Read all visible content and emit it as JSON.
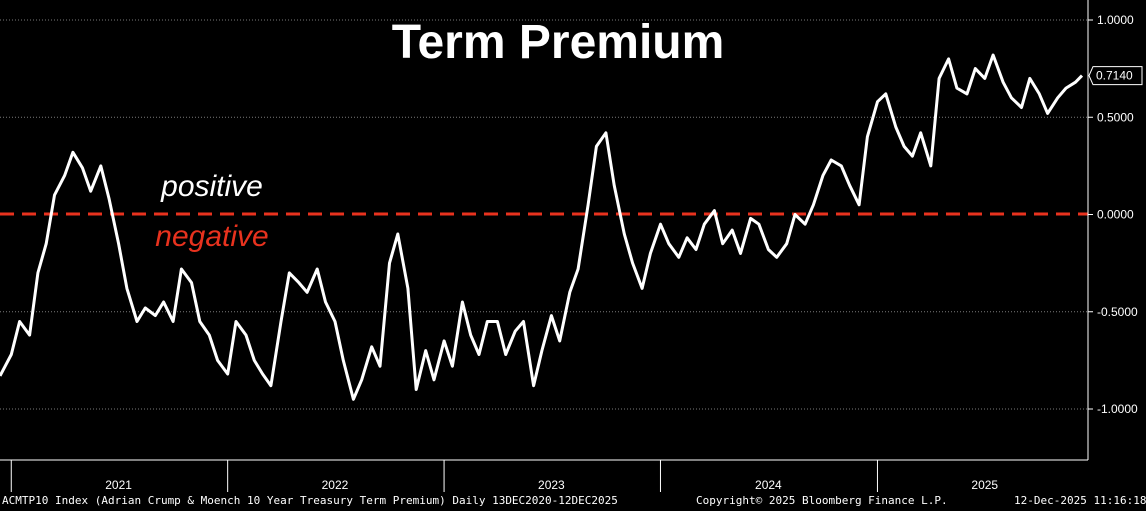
{
  "chart_data": {
    "type": "line",
    "title": "Term Premium",
    "ylim": [
      -1.15,
      1.05
    ],
    "yticks": [
      -1.0,
      -0.5,
      0.0,
      0.5,
      1.0
    ],
    "ytick_labels": [
      "-1.0000",
      "-0.5000",
      "0.0000",
      "0.5000",
      "1.0000"
    ],
    "x_range": [
      "2020-12-13",
      "2025-12-12"
    ],
    "year_labels": [
      {
        "label": "2021",
        "date": "2021-07-01"
      },
      {
        "label": "2022",
        "date": "2022-07-01"
      },
      {
        "label": "2023",
        "date": "2023-07-01"
      },
      {
        "label": "2024",
        "date": "2024-07-01"
      },
      {
        "label": "2025",
        "date": "2025-07-01"
      }
    ],
    "year_boundaries": [
      "2021-01-01",
      "2022-01-01",
      "2023-01-01",
      "2024-01-01",
      "2025-01-01"
    ],
    "grid": true,
    "reference_line": {
      "y": 0.0,
      "color": "#e8321e"
    },
    "annotations": [
      {
        "text": "positive",
        "color": "#ffffff"
      },
      {
        "text": "negative",
        "color": "#e8321e"
      }
    ],
    "last_value_label": "0.7140",
    "line_color": "#ffffff",
    "series": [
      {
        "x": [
          "2020-12-13",
          "2021-01-01",
          "2021-01-15",
          "2021-02-01",
          "2021-02-15",
          "2021-03-01",
          "2021-03-15",
          "2021-04-01",
          "2021-04-15",
          "2021-05-01",
          "2021-05-15",
          "2021-06-01",
          "2021-06-15",
          "2021-07-01",
          "2021-07-15",
          "2021-08-01",
          "2021-08-15",
          "2021-09-01",
          "2021-09-15",
          "2021-10-01",
          "2021-10-15",
          "2021-11-01",
          "2021-11-15",
          "2021-12-01",
          "2021-12-15",
          "2022-01-01",
          "2022-01-15",
          "2022-02-01",
          "2022-02-15",
          "2022-03-01",
          "2022-03-15",
          "2022-04-01",
          "2022-04-15",
          "2022-05-01",
          "2022-05-15",
          "2022-06-01",
          "2022-06-15",
          "2022-07-01",
          "2022-07-15",
          "2022-08-01",
          "2022-08-15",
          "2022-09-01",
          "2022-09-15",
          "2022-10-01",
          "2022-10-15",
          "2022-11-01",
          "2022-11-15",
          "2022-12-01",
          "2022-12-15",
          "2023-01-01",
          "2023-01-15",
          "2023-02-01",
          "2023-02-15",
          "2023-03-01",
          "2023-03-15",
          "2023-04-01",
          "2023-04-15",
          "2023-05-01",
          "2023-05-15",
          "2023-06-01",
          "2023-06-15",
          "2023-07-01",
          "2023-07-15",
          "2023-08-01",
          "2023-08-15",
          "2023-09-01",
          "2023-09-15",
          "2023-10-01",
          "2023-10-15",
          "2023-11-01",
          "2023-11-15",
          "2023-12-01",
          "2023-12-15",
          "2024-01-01",
          "2024-01-15",
          "2024-02-01",
          "2024-02-15",
          "2024-03-01",
          "2024-03-15",
          "2024-04-01",
          "2024-04-15",
          "2024-05-01",
          "2024-05-15",
          "2024-06-01",
          "2024-06-15",
          "2024-07-01",
          "2024-07-15",
          "2024-08-01",
          "2024-08-15",
          "2024-09-01",
          "2024-09-15",
          "2024-10-01",
          "2024-10-15",
          "2024-11-01",
          "2024-11-15",
          "2024-12-01",
          "2024-12-15",
          "2025-01-01",
          "2025-01-15",
          "2025-02-01",
          "2025-02-15",
          "2025-03-01",
          "2025-03-15",
          "2025-04-01",
          "2025-04-15",
          "2025-05-01",
          "2025-05-15",
          "2025-06-01",
          "2025-06-15",
          "2025-07-01",
          "2025-07-15",
          "2025-08-01",
          "2025-08-15",
          "2025-09-01",
          "2025-09-15",
          "2025-10-01",
          "2025-10-15",
          "2025-11-01",
          "2025-11-15",
          "2025-12-01",
          "2025-12-12"
        ],
        "values": [
          -0.83,
          -0.72,
          -0.55,
          -0.62,
          -0.3,
          -0.15,
          0.1,
          0.2,
          0.32,
          0.24,
          0.12,
          0.25,
          0.08,
          -0.15,
          -0.38,
          -0.55,
          -0.48,
          -0.52,
          -0.45,
          -0.55,
          -0.28,
          -0.35,
          -0.55,
          -0.62,
          -0.75,
          -0.82,
          -0.55,
          -0.62,
          -0.75,
          -0.82,
          -0.88,
          -0.55,
          -0.3,
          -0.35,
          -0.4,
          -0.28,
          -0.45,
          -0.55,
          -0.75,
          -0.95,
          -0.85,
          -0.68,
          -0.78,
          -0.25,
          -0.1,
          -0.38,
          -0.9,
          -0.7,
          -0.85,
          -0.65,
          -0.78,
          -0.45,
          -0.62,
          -0.72,
          -0.55,
          -0.55,
          -0.72,
          -0.6,
          -0.55,
          -0.88,
          -0.7,
          -0.52,
          -0.65,
          -0.4,
          -0.28,
          0.05,
          0.35,
          0.42,
          0.15,
          -0.1,
          -0.25,
          -0.38,
          -0.2,
          -0.05,
          -0.15,
          -0.22,
          -0.12,
          -0.18,
          -0.05,
          0.02,
          -0.15,
          -0.08,
          -0.2,
          -0.02,
          -0.05,
          -0.18,
          -0.22,
          -0.15,
          0.0,
          -0.05,
          0.05,
          0.2,
          0.28,
          0.25,
          0.15,
          0.05,
          0.4,
          0.58,
          0.62,
          0.45,
          0.35,
          0.3,
          0.42,
          0.25,
          0.7,
          0.8,
          0.65,
          0.62,
          0.75,
          0.7,
          0.82,
          0.68,
          0.6,
          0.55,
          0.7,
          0.62,
          0.52,
          0.6,
          0.65,
          0.68,
          0.714
        ]
      }
    ]
  },
  "footer": {
    "left": "ACMTP10 Index (Adrian Crump & Moench 10 Year Treasury Term Premium) Daily 13DEC2020-12DEC2025",
    "center": "Copyright© 2025 Bloomberg Finance L.P.",
    "right": "12-Dec-2025 11:16:18"
  }
}
